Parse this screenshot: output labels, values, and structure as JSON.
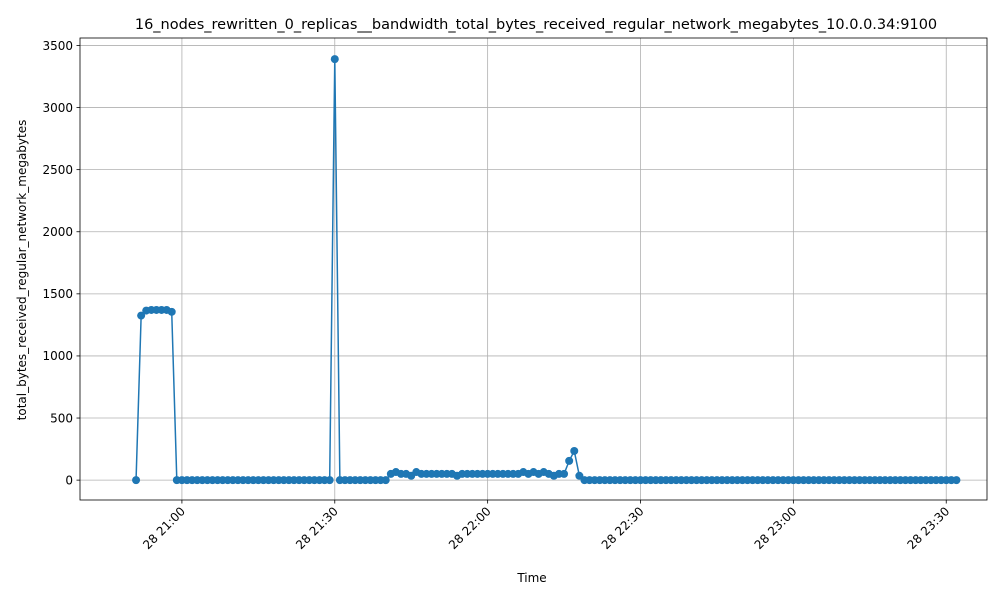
{
  "chart_data": {
    "type": "line",
    "title": "16_nodes_rewritten_0_replicas__bandwidth_total_bytes_received_regular_network_megabytes_10.0.0.34:9100",
    "xlabel": "Time",
    "ylabel": "total_bytes_received_regular_network_megabytes",
    "xlim": [
      "2024-01-28 20:40",
      "2024-01-28 23:38"
    ],
    "ylim": [
      -160,
      3560
    ],
    "grid": true,
    "markers": true,
    "color": "#1f77b4",
    "x_ticks": [
      {
        "t": "2024-01-28 21:00",
        "label": "28 21:00"
      },
      {
        "t": "2024-01-28 21:30",
        "label": "28 21:30"
      },
      {
        "t": "2024-01-28 22:00",
        "label": "28 22:00"
      },
      {
        "t": "2024-01-28 22:30",
        "label": "28 22:30"
      },
      {
        "t": "2024-01-28 23:00",
        "label": "28 23:00"
      },
      {
        "t": "2024-01-28 23:30",
        "label": "28 23:30"
      }
    ],
    "y_ticks": [
      0,
      500,
      1000,
      1500,
      2000,
      2500,
      3000,
      3500
    ],
    "x_start": "2024-01-28 20:51",
    "x_step_minutes": 1,
    "values": [
      0,
      1325,
      1365,
      1370,
      1370,
      1370,
      1370,
      1355,
      0,
      0,
      0,
      0,
      0,
      0,
      0,
      0,
      0,
      0,
      0,
      0,
      0,
      0,
      0,
      0,
      0,
      0,
      0,
      0,
      0,
      0,
      0,
      0,
      0,
      0,
      0,
      0,
      0,
      0,
      0,
      3390,
      0,
      0,
      0,
      0,
      0,
      0,
      0,
      0,
      0,
      0,
      50,
      65,
      50,
      50,
      35,
      65,
      50,
      50,
      50,
      50,
      50,
      50,
      50,
      35,
      50,
      50,
      50,
      50,
      50,
      50,
      50,
      50,
      50,
      50,
      50,
      50,
      65,
      50,
      65,
      50,
      65,
      50,
      35,
      50,
      50,
      155,
      235,
      35,
      0,
      0,
      0,
      0,
      0,
      0,
      0,
      0,
      0,
      0,
      0,
      0,
      0,
      0,
      0,
      0,
      0,
      0,
      0,
      0,
      0,
      0,
      0,
      0,
      0,
      0,
      0,
      0,
      0,
      0,
      0,
      0,
      0,
      0,
      0,
      0,
      0,
      0,
      0,
      0,
      0,
      0,
      0,
      0,
      0,
      0,
      0,
      0,
      0,
      0,
      0,
      0,
      0,
      0,
      0,
      0,
      0,
      0,
      0,
      0,
      0,
      0,
      0,
      0,
      0,
      0,
      0,
      0,
      0,
      0,
      0,
      0,
      0,
      0
    ]
  }
}
